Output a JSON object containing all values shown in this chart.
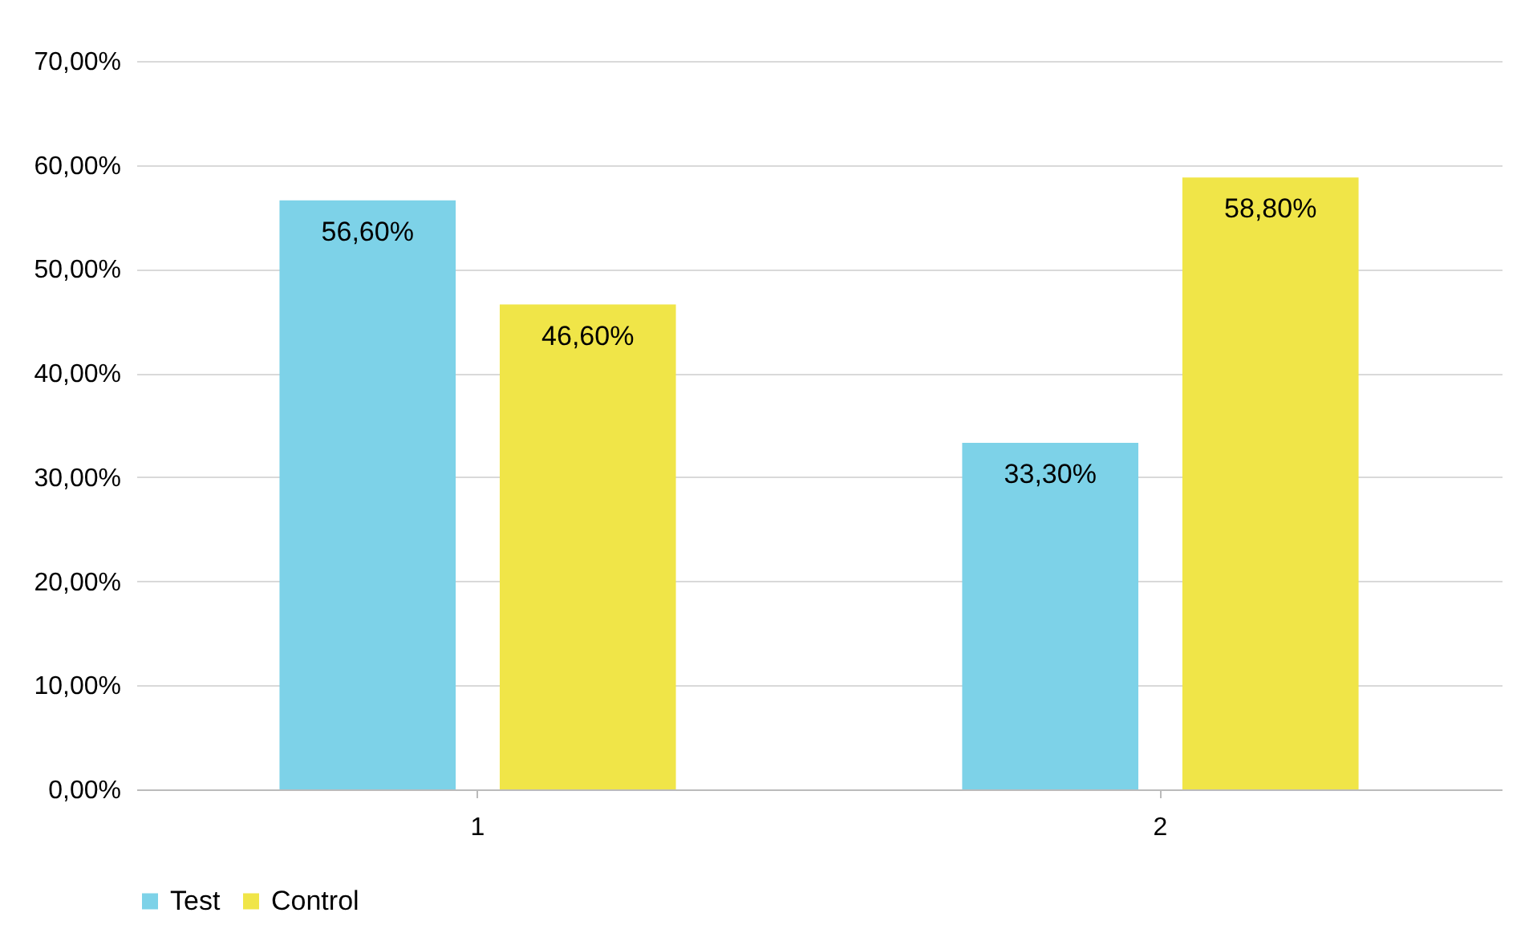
{
  "chart_data": {
    "type": "bar",
    "categories": [
      "1",
      "2"
    ],
    "series": [
      {
        "name": "Test",
        "color": "#7dd2e8",
        "values": [
          56.6,
          33.3
        ],
        "value_labels": [
          "56,60%",
          "33,30%"
        ]
      },
      {
        "name": "Control",
        "color": "#f0e548",
        "values": [
          46.6,
          58.8
        ],
        "value_labels": [
          "46,60%",
          "58,80%"
        ]
      }
    ],
    "ylim": [
      0,
      70
    ],
    "yticks": [
      {
        "value": 0,
        "label": "0,00%"
      },
      {
        "value": 10,
        "label": "10,00%"
      },
      {
        "value": 20,
        "label": "20,00%"
      },
      {
        "value": 30,
        "label": "30,00%"
      },
      {
        "value": 40,
        "label": "40,00%"
      },
      {
        "value": 50,
        "label": "50,00%"
      },
      {
        "value": 60,
        "label": "60,00%"
      },
      {
        "value": 70,
        "label": "70,00%"
      }
    ],
    "grid": "y",
    "legend": "bottom"
  }
}
